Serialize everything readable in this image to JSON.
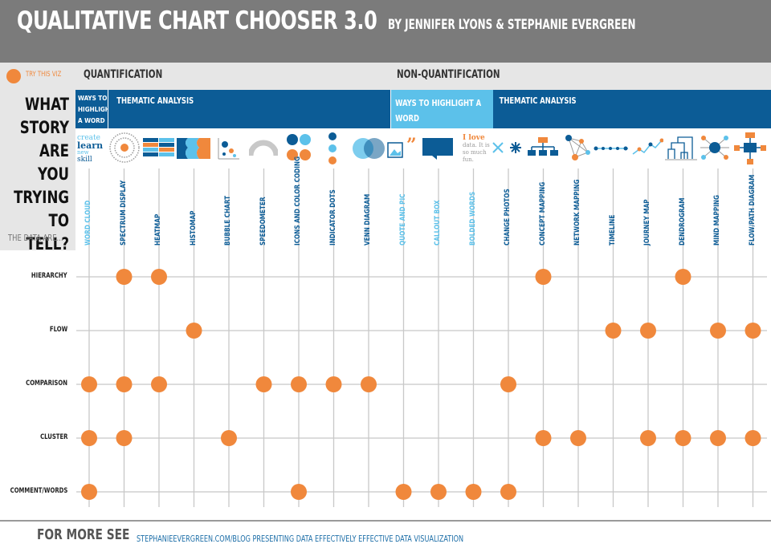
{
  "header": {
    "title": "QUALITATIVE CHART CHOOSER 3.0",
    "byline": "BY JENNIFER LYONS & STEPHANIE EVERGREEN"
  },
  "legend": {
    "label": "TRY THIS VIZ",
    "dot_color": "#f0883c"
  },
  "sections": {
    "left": "QUANTIFICATION",
    "right": "NON-QUANTIFICATION"
  },
  "question": {
    "lines": [
      "WHAT",
      "STORY",
      "ARE YOU",
      "TRYING TO",
      "TELL?"
    ],
    "data_are": "THE DATA ARE..."
  },
  "bands": {
    "ways_small": [
      "WAYS TO",
      "HIGHLIGHT",
      "A WORD"
    ],
    "thematic_left": "THEMATIC ANALYSIS",
    "ways_right": [
      "WAYS TO HIGHLIGHT A",
      "WORD"
    ],
    "thematic_right": "THEMATIC ANALYSIS"
  },
  "colors": {
    "dark_blue": "#0c5c96",
    "light_blue": "#5cc1ea",
    "orange": "#f0883c",
    "gray_header": "#7b7b7b",
    "grid": "#c8c8c8"
  },
  "word_cloud_icon": {
    "words": [
      "create",
      "learn",
      "new",
      "skill"
    ]
  },
  "bolded_words_icon": {
    "words": [
      "I love",
      "data. It is",
      "so much",
      "fun."
    ]
  },
  "columns": [
    {
      "id": "word-cloud",
      "label": "WORD CLOUD",
      "light": true
    },
    {
      "id": "spectrum-display",
      "label": "SPECTRUM DISPLAY",
      "light": false
    },
    {
      "id": "heatmap",
      "label": "HEATMAP",
      "light": false
    },
    {
      "id": "histomap",
      "label": "HISTOMAP",
      "light": false
    },
    {
      "id": "bubble-chart",
      "label": "BUBBLE CHART",
      "light": false
    },
    {
      "id": "speedometer",
      "label": "SPEEDOMETER",
      "light": false
    },
    {
      "id": "icons-and-color-coding",
      "label": "ICONS AND COLOR CODING",
      "light": false
    },
    {
      "id": "indicator-dots",
      "label": "INDICATOR DOTS",
      "light": false
    },
    {
      "id": "venn-diagram",
      "label": "VENN DIAGRAM",
      "light": false
    },
    {
      "id": "quote-and-pic",
      "label": "QUOTE AND PIC",
      "light": true
    },
    {
      "id": "callout-box",
      "label": "CALLOUT BOX",
      "light": true
    },
    {
      "id": "bolded-words",
      "label": "BOLDED WORDS",
      "light": true
    },
    {
      "id": "change-photos",
      "label": "CHANGE PHOTOS",
      "light": false
    },
    {
      "id": "concept-mapping",
      "label": "CONCEPT MAPPING",
      "light": false
    },
    {
      "id": "network-mapping",
      "label": "NETWORK MAPPING",
      "light": false
    },
    {
      "id": "timeline",
      "label": "TIMELINE",
      "light": false
    },
    {
      "id": "journey-map",
      "label": "JOURNEY MAP",
      "light": false
    },
    {
      "id": "dendrogram",
      "label": "DENDROGRAM",
      "light": false
    },
    {
      "id": "mind-mapping",
      "label": "MIND MAPPING",
      "light": false
    },
    {
      "id": "flow-path-diagram",
      "label": "FLOW/PATH DIAGRAM",
      "light": false
    }
  ],
  "rows": [
    {
      "label": "HIERARCHY",
      "dots": [
        "spectrum-display",
        "heatmap",
        "concept-mapping",
        "dendrogram"
      ]
    },
    {
      "label": "FLOW",
      "dots": [
        "histomap",
        "timeline",
        "journey-map",
        "mind-mapping",
        "flow-path-diagram"
      ]
    },
    {
      "label": "COMPARISON",
      "dots": [
        "word-cloud",
        "spectrum-display",
        "heatmap",
        "speedometer",
        "icons-and-color-coding",
        "indicator-dots",
        "venn-diagram",
        "change-photos"
      ]
    },
    {
      "label": "CLUSTER",
      "dots": [
        "word-cloud",
        "spectrum-display",
        "bubble-chart",
        "concept-mapping",
        "network-mapping",
        "journey-map",
        "dendrogram",
        "mind-mapping",
        "flow-path-diagram"
      ]
    },
    {
      "label": "COMMENT/WORDS",
      "dots": [
        "word-cloud",
        "icons-and-color-coding",
        "quote-and-pic",
        "callout-box",
        "bolded-words",
        "change-photos"
      ]
    }
  ],
  "footer": {
    "more_see": "FOR MORE SEE",
    "links": "STEPHANIEEVERGREEN.COM/BLOG   PRESENTING DATA EFFECTIVELY   EFFECTIVE DATA VISUALIZATION"
  }
}
